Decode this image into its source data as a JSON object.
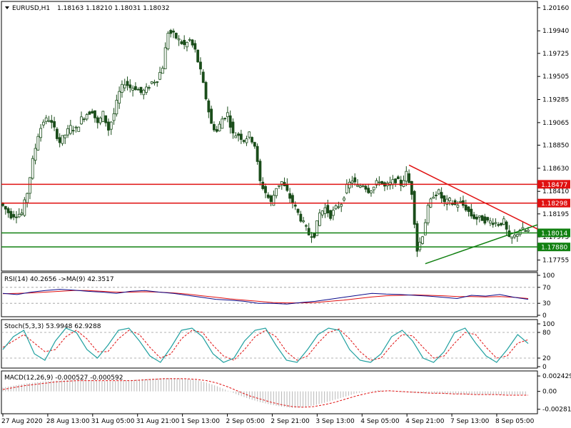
{
  "header": {
    "symbol": "EURUSD,H1",
    "ohlc": "1.18163 1.18210 1.18031 1.18032"
  },
  "colors": {
    "candle": "#1a4d1a",
    "grid": "#000000",
    "resistance": "#e01010",
    "support": "#118011",
    "rsi_line": "#0a0a8a",
    "rsi_ma": "#e01010",
    "stoch_main": "#20a0a0",
    "stoch_signal": "#e01010",
    "macd_hist": "#b8b8b8",
    "macd_signal": "#e01010"
  },
  "chart_data": [
    {
      "type": "candlestick",
      "title": "EURUSD,H1",
      "y_ticks": [
        "1.20160",
        "1.19940",
        "1.19725",
        "1.19505",
        "1.19285",
        "1.19065",
        "1.18850",
        "1.18630",
        "1.18410",
        "1.18195",
        "1.17975",
        "1.17755"
      ],
      "ylim": [
        1.1765,
        1.2022
      ],
      "x_ticks": [
        "27 Aug 2020",
        "28 Aug 13:00",
        "31 Aug 05:00",
        "31 Aug 21:00",
        "1 Sep 13:00",
        "2 Sep 05:00",
        "2 Sep 21:00",
        "3 Sep 13:00",
        "4 Sep 05:00",
        "4 Sep 21:00",
        "7 Sep 13:00",
        "8 Sep 05:00"
      ],
      "horizontal_levels": [
        {
          "value": 1.18477,
          "label": "1.18477",
          "color": "red"
        },
        {
          "value": 1.18298,
          "label": "1.18298",
          "color": "red"
        },
        {
          "value": 1.18014,
          "label": "1.18014",
          "color": "green"
        },
        {
          "value": 1.1788,
          "label": "1.17880",
          "color": "green"
        }
      ],
      "trendlines": [
        {
          "color": "red",
          "from": [
            150,
            1.1866
          ],
          "to": [
            185,
            1.1821
          ]
        },
        {
          "color": "green",
          "from": [
            156,
            1.1772
          ],
          "to": [
            185,
            1.1798
          ]
        }
      ],
      "price_path": [
        [
          0,
          1.183
        ],
        [
          4,
          1.1818
        ],
        [
          8,
          1.182
        ],
        [
          10,
          1.184
        ],
        [
          12,
          1.187
        ],
        [
          14,
          1.1895
        ],
        [
          16,
          1.1908
        ],
        [
          18,
          1.191
        ],
        [
          20,
          1.19
        ],
        [
          22,
          1.1888
        ],
        [
          24,
          1.1895
        ],
        [
          26,
          1.1902
        ],
        [
          28,
          1.19
        ],
        [
          30,
          1.191
        ],
        [
          32,
          1.1915
        ],
        [
          34,
          1.1918
        ],
        [
          36,
          1.1905
        ],
        [
          38,
          1.1915
        ],
        [
          40,
          1.19
        ],
        [
          42,
          1.1915
        ],
        [
          44,
          1.1935
        ],
        [
          46,
          1.1945
        ],
        [
          48,
          1.194
        ],
        [
          50,
          1.194
        ],
        [
          52,
          1.1935
        ],
        [
          54,
          1.1938
        ],
        [
          56,
          1.1945
        ],
        [
          58,
          1.1948
        ],
        [
          60,
          1.196
        ],
        [
          62,
          1.1993
        ],
        [
          64,
          1.199
        ],
        [
          66,
          1.1985
        ],
        [
          68,
          1.198
        ],
        [
          70,
          1.1985
        ],
        [
          72,
          1.1975
        ],
        [
          74,
          1.1955
        ],
        [
          76,
          1.193
        ],
        [
          78,
          1.1905
        ],
        [
          80,
          1.1898
        ],
        [
          82,
          1.191
        ],
        [
          84,
          1.1915
        ],
        [
          86,
          1.1895
        ],
        [
          88,
          1.1895
        ],
        [
          90,
          1.189
        ],
        [
          92,
          1.1895
        ],
        [
          94,
          1.1885
        ],
        [
          96,
          1.185
        ],
        [
          98,
          1.184
        ],
        [
          100,
          1.183
        ],
        [
          102,
          1.1845
        ],
        [
          104,
          1.185
        ],
        [
          106,
          1.184
        ],
        [
          108,
          1.183
        ],
        [
          110,
          1.182
        ],
        [
          112,
          1.181
        ],
        [
          114,
          1.18
        ],
        [
          116,
          1.18
        ],
        [
          118,
          1.182
        ],
        [
          120,
          1.1825
        ],
        [
          122,
          1.1818
        ],
        [
          124,
          1.1825
        ],
        [
          126,
          1.183
        ],
        [
          128,
          1.1845
        ],
        [
          130,
          1.1852
        ],
        [
          132,
          1.1845
        ],
        [
          134,
          1.1848
        ],
        [
          136,
          1.1842
        ],
        [
          138,
          1.1845
        ],
        [
          140,
          1.1852
        ],
        [
          142,
          1.1845
        ],
        [
          144,
          1.1848
        ],
        [
          146,
          1.1852
        ],
        [
          148,
          1.1848
        ],
        [
          150,
          1.1858
        ],
        [
          152,
          1.184
        ],
        [
          154,
          1.1785
        ],
        [
          156,
          1.18
        ],
        [
          158,
          1.1825
        ],
        [
          160,
          1.1838
        ],
        [
          162,
          1.184
        ],
        [
          164,
          1.183
        ],
        [
          166,
          1.1832
        ],
        [
          168,
          1.1828
        ],
        [
          170,
          1.183
        ],
        [
          172,
          1.1825
        ],
        [
          174,
          1.1818
        ],
        [
          176,
          1.1815
        ],
        [
          178,
          1.1815
        ],
        [
          180,
          1.1812
        ],
        [
          182,
          1.1812
        ],
        [
          184,
          1.181
        ],
        [
          186,
          1.1812
        ],
        [
          188,
          1.1795
        ],
        [
          190,
          1.1798
        ],
        [
          192,
          1.1805
        ],
        [
          194,
          1.1803
        ]
      ]
    },
    {
      "type": "line",
      "title": "RSI(14) 40.2656 ->MA(9) 42.3517",
      "y_ticks": [
        "100",
        "70",
        "30",
        "0"
      ],
      "ylim": [
        0,
        100
      ],
      "levels": [
        70,
        30
      ],
      "series": [
        {
          "name": "RSI(14)",
          "values": [
            55,
            52,
            58,
            62,
            65,
            63,
            60,
            58,
            55,
            60,
            62,
            58,
            55,
            50,
            45,
            40,
            38,
            35,
            30,
            30,
            28,
            32,
            35,
            40,
            45,
            50,
            55,
            53,
            52,
            50,
            48,
            45,
            42,
            50,
            48,
            52,
            45,
            40
          ]
        },
        {
          "name": "MA(9)",
          "values": [
            54,
            55,
            56,
            58,
            60,
            62,
            62,
            60,
            58,
            58,
            59,
            58,
            56,
            53,
            49,
            45,
            41,
            38,
            35,
            32,
            31,
            31,
            32,
            35,
            38,
            42,
            46,
            49,
            50,
            51,
            50,
            49,
            47,
            47,
            46,
            47,
            45,
            42
          ]
        }
      ]
    },
    {
      "type": "line",
      "title": "Stoch(5,3,3) 53.9948 62.9288",
      "y_ticks": [
        "100",
        "80",
        "20",
        "0"
      ],
      "ylim": [
        0,
        100
      ],
      "levels": [
        80,
        20
      ],
      "series": [
        {
          "name": "Main",
          "values": [
            40,
            70,
            85,
            30,
            15,
            60,
            90,
            80,
            40,
            20,
            50,
            85,
            90,
            60,
            25,
            10,
            45,
            85,
            90,
            70,
            30,
            10,
            20,
            60,
            85,
            90,
            50,
            15,
            10,
            40,
            75,
            90,
            85,
            40,
            15,
            10,
            30,
            70,
            85,
            60,
            20,
            10,
            35,
            80,
            90,
            55,
            25,
            10,
            40,
            75,
            54
          ]
        },
        {
          "name": "Signal",
          "values": [
            45,
            60,
            75,
            55,
            35,
            40,
            70,
            85,
            65,
            35,
            35,
            65,
            85,
            75,
            45,
            20,
            30,
            65,
            85,
            80,
            50,
            25,
            15,
            40,
            70,
            85,
            70,
            35,
            15,
            25,
            55,
            80,
            88,
            65,
            35,
            15,
            20,
            50,
            75,
            72,
            45,
            20,
            25,
            55,
            80,
            75,
            45,
            20,
            25,
            55,
            63
          ]
        }
      ]
    },
    {
      "type": "bar",
      "title": "MACD(12,26,9) -0.000527 -0.000592",
      "y_ticks": [
        "0.002429",
        "0.00",
        "-0.002818"
      ],
      "ylim": [
        -0.0033,
        0.003
      ],
      "series": [
        {
          "name": "MACD",
          "values": [
            0.0006,
            0.0009,
            0.0012,
            0.0014,
            0.0016,
            0.0017,
            0.0018,
            0.0019,
            0.0018,
            0.0017,
            0.0016,
            0.0017,
            0.0018,
            0.0019,
            0.002,
            0.0021,
            0.0021,
            0.002,
            0.0018,
            0.0014,
            0.0008,
            0.0001,
            -0.0006,
            -0.0012,
            -0.0017,
            -0.0021,
            -0.0024,
            -0.0026,
            -0.0025,
            -0.0022,
            -0.0018,
            -0.0013,
            -0.0008,
            -0.0003,
            0.0,
            0.0002,
            0.0001,
            -0.0001,
            -0.0002,
            -0.0003,
            -0.0003,
            -0.0004,
            -0.0004,
            -0.0005,
            -0.0005,
            -0.0005,
            -0.0005,
            -0.0005,
            -0.0005,
            -0.0005
          ]
        },
        {
          "name": "Signal",
          "values": [
            0.0003,
            0.0006,
            0.0009,
            0.0011,
            0.0013,
            0.0015,
            0.0016,
            0.0017,
            0.0017,
            0.0017,
            0.0017,
            0.0017,
            0.0017,
            0.0018,
            0.0019,
            0.002,
            0.002,
            0.002,
            0.0019,
            0.0017,
            0.0013,
            0.0007,
            0.0,
            -0.0007,
            -0.0012,
            -0.0017,
            -0.0021,
            -0.0024,
            -0.0025,
            -0.0024,
            -0.0021,
            -0.0017,
            -0.0012,
            -0.0007,
            -0.0003,
            0.0,
            0.0001,
            0.0,
            -0.0001,
            -0.0002,
            -0.0003,
            -0.0003,
            -0.0004,
            -0.0004,
            -0.0005,
            -0.0005,
            -0.0005,
            -0.0006,
            -0.0006,
            -0.0006
          ]
        }
      ]
    }
  ]
}
